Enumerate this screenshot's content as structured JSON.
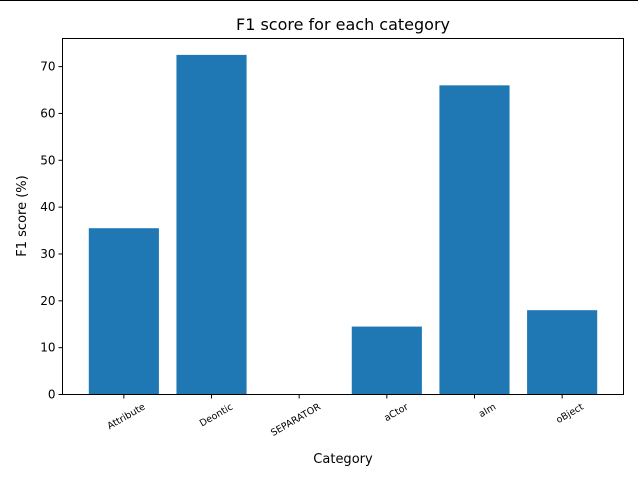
{
  "chart_data": {
    "type": "bar",
    "title": "F1 score for each category",
    "xlabel": "Category",
    "ylabel": "F1 score (%)",
    "categories": [
      "Attribute",
      "Deontic",
      "SEPARATOR",
      "aCtor",
      "aIm",
      "oBject"
    ],
    "values": [
      35.5,
      72.5,
      0,
      14.5,
      66.0,
      18.0
    ],
    "ylim": [
      0,
      76
    ],
    "yticks": [
      0,
      10,
      20,
      30,
      40,
      50,
      60,
      70
    ],
    "bar_color": "#1f77b4",
    "grid": false,
    "legend": "none"
  }
}
